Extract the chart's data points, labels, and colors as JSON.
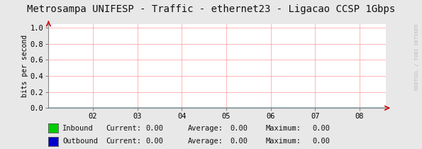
{
  "title": "Metrosampa UNIFESP - Traffic - ethernet23 - Ligacao CCSP 1Gbps",
  "ylabel": "bits per second",
  "xlim": [
    1.0,
    8.6
  ],
  "ylim": [
    0.0,
    1.05
  ],
  "xticks": [
    2,
    3,
    4,
    5,
    6,
    7,
    8
  ],
  "xtick_labels": [
    "02",
    "03",
    "04",
    "05",
    "06",
    "07",
    "08"
  ],
  "yticks": [
    0.0,
    0.2,
    0.4,
    0.6,
    0.8,
    1.0
  ],
  "ytick_labels": [
    "0.0",
    "0.2",
    "0.4",
    "0.6",
    "0.8",
    "1.0"
  ],
  "grid_color": "#ff9999",
  "bg_color": "#e8e8e8",
  "plot_bg_color": "#ffffff",
  "axis_arrow_color": "#cc0000",
  "title_color": "#111111",
  "title_fontsize": 10,
  "ylabel_fontsize": 7,
  "tick_fontsize": 7.5,
  "legend": [
    {
      "label": "Inbound",
      "color": "#00cc00"
    },
    {
      "label": "Outbound",
      "color": "#0000cc"
    }
  ],
  "legend_entries": [
    {
      "name": "Inbound",
      "current": "0.00",
      "average": "0.00",
      "maximum": "0.00"
    },
    {
      "name": "Outbound",
      "current": "0.00",
      "average": "0.00",
      "maximum": "0.00"
    }
  ],
  "watermark": "RRDTOOL / TOBI OETIKER",
  "watermark_color": "#bbbbbb",
  "watermark_fontsize": 5.0
}
